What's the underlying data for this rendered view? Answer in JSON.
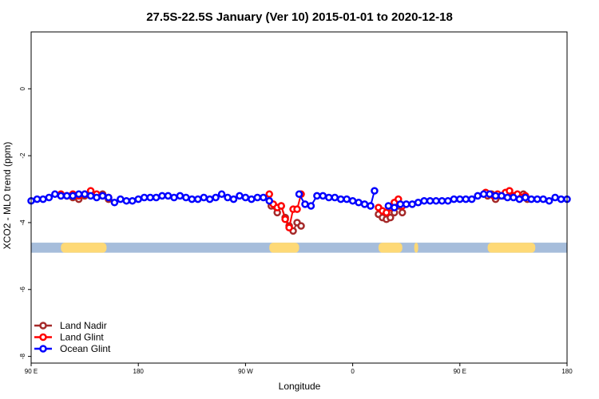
{
  "chart_data": {
    "type": "line",
    "title": "27.5S-22.5S January (Ver 10)   2015-01-01 to 2020-12-18",
    "xlabel": "Longitude",
    "ylabel": "XCO2 - MLO trend (ppm)",
    "xlim": [
      -270,
      0
    ],
    "ylim": [
      -8.2,
      1.7
    ],
    "x_unit_note": "",
    "xticks": [
      {
        "value": -270,
        "label": "90 E"
      },
      {
        "value": -216,
        "label": "180"
      },
      {
        "value": -162,
        "label": "90 W"
      },
      {
        "value": -108,
        "label": "0"
      },
      {
        "value": -54,
        "label": "90 E"
      },
      {
        "value": 0,
        "label": "180"
      }
    ],
    "yticks": [
      {
        "value": 0,
        "label": "0"
      },
      {
        "value": -2,
        "label": "-2"
      },
      {
        "value": -4,
        "label": "-4"
      },
      {
        "value": -6,
        "label": "-6"
      },
      {
        "value": -8,
        "label": "-8"
      }
    ],
    "land_band": {
      "y_range": [
        -4.9,
        -4.6
      ],
      "ocean_color": "#a6bddb",
      "land_color": "#fed976",
      "land_segments": [
        [
          -255,
          -232
        ],
        [
          -150,
          -135
        ],
        [
          -95,
          -83
        ],
        [
          -77,
          -75
        ],
        [
          -40,
          -16
        ]
      ]
    },
    "legend_position": "bottom-left",
    "series": [
      {
        "name": "Land Nadir",
        "color": "#a52a2a",
        "segments": [
          {
            "x": [
              -255,
              -252,
              -249,
              -246,
              -243,
              -240,
              -237,
              -234,
              -231
            ],
            "y": [
              -3.2,
              -3.2,
              -3.25,
              -3.3,
              -3.2,
              -3.15,
              -3.2,
              -3.15,
              -3.3
            ]
          },
          {
            "x": [
              -149,
              -146,
              -144,
              -142,
              -140,
              -138,
              -136,
              -134
            ],
            "y": [
              -3.5,
              -3.7,
              -3.5,
              -3.85,
              -4.1,
              -4.25,
              -4.0,
              -4.1
            ]
          },
          {
            "x": [
              -95,
              -93,
              -91,
              -89,
              -87,
              -85,
              -83
            ],
            "y": [
              -3.75,
              -3.85,
              -3.9,
              -3.85,
              -3.7,
              -3.5,
              -3.7
            ]
          },
          {
            "x": [
              -40,
              -38,
              -36,
              -34,
              -32,
              -30,
              -28,
              -26,
              -24,
              -22,
              -20
            ],
            "y": [
              -3.2,
              -3.15,
              -3.3,
              -3.2,
              -3.2,
              -3.15,
              -3.2,
              -3.2,
              -3.25,
              -3.15,
              -3.3
            ]
          }
        ]
      },
      {
        "name": "Land Glint",
        "color": "#ff0000",
        "segments": [
          {
            "x": [
              -255,
              -252,
              -249,
              -246,
              -243,
              -240,
              -237,
              -234,
              -231
            ],
            "y": [
              -3.15,
              -3.2,
              -3.15,
              -3.2,
              -3.15,
              -3.05,
              -3.15,
              -3.2,
              -3.25
            ]
          },
          {
            "x": [
              -150,
              -148,
              -146,
              -144,
              -142,
              -140,
              -138,
              -136,
              -134
            ],
            "y": [
              -3.15,
              -3.45,
              -3.55,
              -3.5,
              -3.9,
              -4.15,
              -3.6,
              -3.6,
              -3.15
            ]
          },
          {
            "x": [
              -95,
              -93,
              -91,
              -89,
              -87,
              -85,
              -83
            ],
            "y": [
              -3.55,
              -3.65,
              -3.7,
              -3.55,
              -3.4,
              -3.3,
              -3.5
            ]
          },
          {
            "x": [
              -41,
              -39,
              -37,
              -35,
              -33,
              -31,
              -29,
              -27,
              -25,
              -23,
              -21
            ],
            "y": [
              -3.1,
              -3.15,
              -3.2,
              -3.15,
              -3.2,
              -3.1,
              -3.05,
              -3.2,
              -3.15,
              -3.25,
              -3.2
            ]
          }
        ]
      },
      {
        "name": "Ocean Glint",
        "color": "#0000ff",
        "segments": [
          {
            "x": [
              -270,
              -267,
              -264,
              -261,
              -258,
              -255,
              -252,
              -249,
              -246,
              -243,
              -240,
              -237,
              -234,
              -231,
              -228,
              -225,
              -222,
              -219,
              -216,
              -213,
              -210,
              -207,
              -204,
              -201,
              -198,
              -195,
              -192,
              -189,
              -186,
              -183,
              -180,
              -177,
              -174,
              -171,
              -168,
              -165,
              -162,
              -159,
              -156,
              -153,
              -150
            ],
            "y": [
              -3.35,
              -3.3,
              -3.3,
              -3.25,
              -3.15,
              -3.2,
              -3.2,
              -3.2,
              -3.15,
              -3.15,
              -3.2,
              -3.25,
              -3.2,
              -3.25,
              -3.4,
              -3.3,
              -3.35,
              -3.35,
              -3.3,
              -3.25,
              -3.25,
              -3.25,
              -3.2,
              -3.2,
              -3.25,
              -3.2,
              -3.25,
              -3.3,
              -3.3,
              -3.25,
              -3.3,
              -3.25,
              -3.15,
              -3.25,
              -3.3,
              -3.2,
              -3.25,
              -3.3,
              -3.25,
              -3.25,
              -3.35
            ]
          },
          {
            "x": [
              -135,
              -132,
              -129,
              -126,
              -123,
              -120,
              -117,
              -114,
              -111,
              -108,
              -105,
              -102,
              -99
            ],
            "y": [
              -3.15,
              -3.45,
              -3.5,
              -3.2,
              -3.2,
              -3.25,
              -3.25,
              -3.3,
              -3.3,
              -3.35,
              -3.4,
              -3.45,
              -3.5
            ]
          },
          {
            "x": [
              -99,
              -97
            ],
            "y": [
              -3.5,
              -3.05
            ]
          },
          {
            "x": [
              -90,
              -87,
              -84,
              -81,
              -78,
              -75,
              -72,
              -69,
              -66,
              -63,
              -60,
              -57,
              -54,
              -51,
              -48,
              -45,
              -42,
              -39,
              -36,
              -33,
              -30,
              -27,
              -24,
              -21,
              -18,
              -15,
              -12,
              -9,
              -6,
              -3,
              0
            ],
            "y": [
              -3.5,
              -3.55,
              -3.45,
              -3.45,
              -3.45,
              -3.4,
              -3.35,
              -3.35,
              -3.35,
              -3.35,
              -3.35,
              -3.3,
              -3.3,
              -3.3,
              -3.3,
              -3.2,
              -3.15,
              -3.15,
              -3.2,
              -3.2,
              -3.25,
              -3.25,
              -3.3,
              -3.25,
              -3.3,
              -3.3,
              -3.3,
              -3.35,
              -3.25,
              -3.3,
              -3.3
            ]
          }
        ]
      }
    ]
  }
}
